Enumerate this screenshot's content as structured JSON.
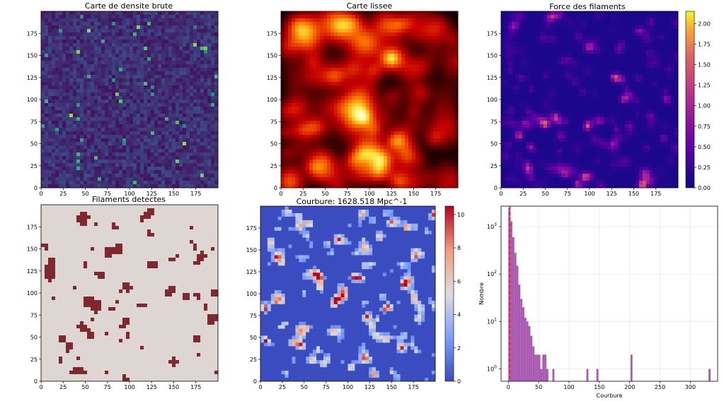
{
  "figure": {
    "panels": [
      {
        "id": "raw",
        "title": "Carte de densite brute"
      },
      {
        "id": "smooth",
        "title": "Carte lissee"
      },
      {
        "id": "strength",
        "title": "Force des filaments"
      },
      {
        "id": "detected",
        "title": "Filaments detectes"
      },
      {
        "id": "curvature",
        "title": "Courbure: 1628.518 Mpc^-1"
      },
      {
        "id": "hist",
        "title": ""
      }
    ]
  },
  "chart_data": [
    {
      "type": "heatmap",
      "title": "Carte de densite brute",
      "colormap": "viridis",
      "xlim": [
        0,
        200
      ],
      "ylim": [
        0,
        200
      ],
      "xticks": [
        0,
        25,
        50,
        75,
        100,
        125,
        150,
        175
      ],
      "yticks": [
        0,
        25,
        50,
        75,
        100,
        125,
        150,
        175
      ]
    },
    {
      "type": "heatmap",
      "title": "Carte lissee",
      "colormap": "hot",
      "xlim": [
        0,
        200
      ],
      "ylim": [
        0,
        200
      ],
      "xticks": [
        0,
        25,
        50,
        75,
        100,
        125,
        150,
        175
      ],
      "yticks": [
        0,
        25,
        50,
        75,
        100,
        125,
        150,
        175
      ]
    },
    {
      "type": "heatmap",
      "title": "Force des filaments",
      "colormap": "plasma",
      "xlim": [
        0,
        200
      ],
      "ylim": [
        0,
        200
      ],
      "xticks": [
        0,
        25,
        50,
        75,
        100,
        125,
        150,
        175
      ],
      "yticks": [
        0,
        25,
        50,
        75,
        100,
        125,
        150,
        175
      ],
      "colorbar": {
        "min": 0,
        "max": 2.15,
        "ticks": [
          "0.00",
          "0.25",
          "0.50",
          "0.75",
          "1.00",
          "1.25",
          "1.50",
          "1.75",
          "2.00"
        ]
      }
    },
    {
      "type": "heatmap",
      "title": "Filaments detectes",
      "colormap": "binary-red",
      "xlim": [
        0,
        200
      ],
      "ylim": [
        0,
        200
      ],
      "xticks": [
        0,
        25,
        50,
        75,
        100,
        125,
        150,
        175
      ],
      "yticks": [
        0,
        25,
        50,
        75,
        100,
        125,
        150,
        175
      ]
    },
    {
      "type": "heatmap",
      "title": "Courbure: 1628.518 Mpc^-1",
      "colormap": "coolwarm",
      "xlim": [
        0,
        200
      ],
      "ylim": [
        0,
        200
      ],
      "xticks": [
        0,
        25,
        50,
        75,
        100,
        125,
        150,
        175
      ],
      "yticks": [
        0,
        25,
        50,
        75,
        100,
        125,
        150,
        175
      ],
      "colorbar": {
        "min": 0,
        "max": 10.5,
        "ticks": [
          "0",
          "2",
          "4",
          "6",
          "8",
          "10"
        ]
      }
    },
    {
      "type": "bar",
      "title": "",
      "xlabel": "Courbure",
      "ylabel": "Nombre",
      "yscale": "log",
      "xlim": [
        -12,
        345
      ],
      "xticks": [
        0,
        50,
        100,
        150,
        200,
        250,
        300
      ],
      "yticks": [
        1,
        10,
        100,
        1000
      ],
      "ytick_labels": [
        "10^0",
        "10^1",
        "10^2",
        "10^3"
      ],
      "grid": true,
      "bin_width": 3.3,
      "bar_color": "#9b3ea3",
      "reference_line": {
        "x": 2.5,
        "color": "#e02020",
        "style": "dashed"
      },
      "bins": [
        {
          "x": 0,
          "count": 2500
        },
        {
          "x": 3.3,
          "count": 1300
        },
        {
          "x": 6.6,
          "count": 600
        },
        {
          "x": 9.9,
          "count": 280
        },
        {
          "x": 13.2,
          "count": 150
        },
        {
          "x": 16.5,
          "count": 60
        },
        {
          "x": 19.8,
          "count": 30
        },
        {
          "x": 23.1,
          "count": 20
        },
        {
          "x": 26.4,
          "count": 12
        },
        {
          "x": 29.7,
          "count": 10
        },
        {
          "x": 33.0,
          "count": 8
        },
        {
          "x": 36.3,
          "count": 5
        },
        {
          "x": 39.6,
          "count": 3
        },
        {
          "x": 42.9,
          "count": 2
        },
        {
          "x": 46.2,
          "count": 2
        },
        {
          "x": 49.5,
          "count": 2
        },
        {
          "x": 52.8,
          "count": 1
        },
        {
          "x": 56.1,
          "count": 2
        },
        {
          "x": 59.4,
          "count": 2
        },
        {
          "x": 62.7,
          "count": 1
        },
        {
          "x": 72.6,
          "count": 1
        },
        {
          "x": 128.7,
          "count": 1
        },
        {
          "x": 145.2,
          "count": 1
        },
        {
          "x": 201.3,
          "count": 2
        },
        {
          "x": 330.0,
          "count": 1
        }
      ]
    }
  ]
}
